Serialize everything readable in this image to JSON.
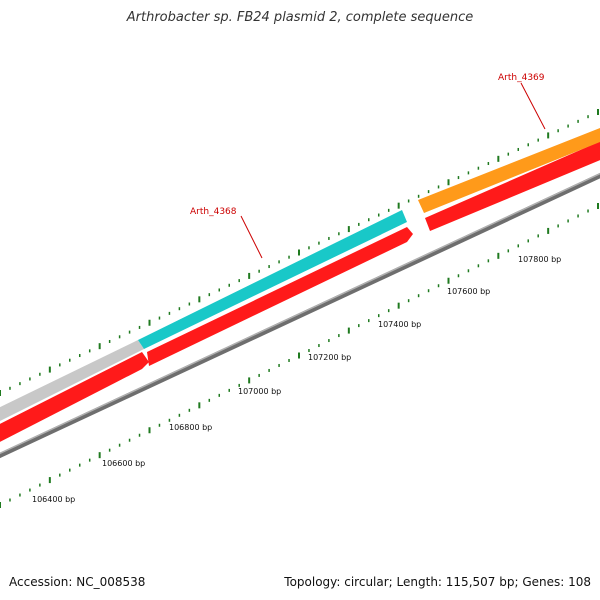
{
  "title": "Arthrobacter sp. FB24 plasmid 2, complete sequence",
  "footer": {
    "accession": "Accession: NC_008538",
    "summary": "Topology: circular; Length: 115,507 bp; Genes: 108"
  },
  "colors": {
    "background": "#ffffff",
    "backbone": "#8a8a8a",
    "reverse_strand_gene": "#ff1a1a",
    "gene_cyan": "#19c8c8",
    "gene_orange": "#ff9a1a",
    "gene_gray": "#c8c8c8",
    "tick": "#1f7a1f",
    "label_red": "#cc0000"
  },
  "ruler": {
    "unit": "bp",
    "labels": [
      "106400 bp",
      "106600 bp",
      "106800 bp",
      "107000 bp",
      "107200 bp",
      "107400 bp",
      "107600 bp",
      "107800 bp"
    ]
  },
  "genes": [
    {
      "name": "Arth_4368",
      "color_key": "gene_cyan"
    },
    {
      "name": "Arth_4369",
      "color_key": "gene_orange"
    }
  ]
}
